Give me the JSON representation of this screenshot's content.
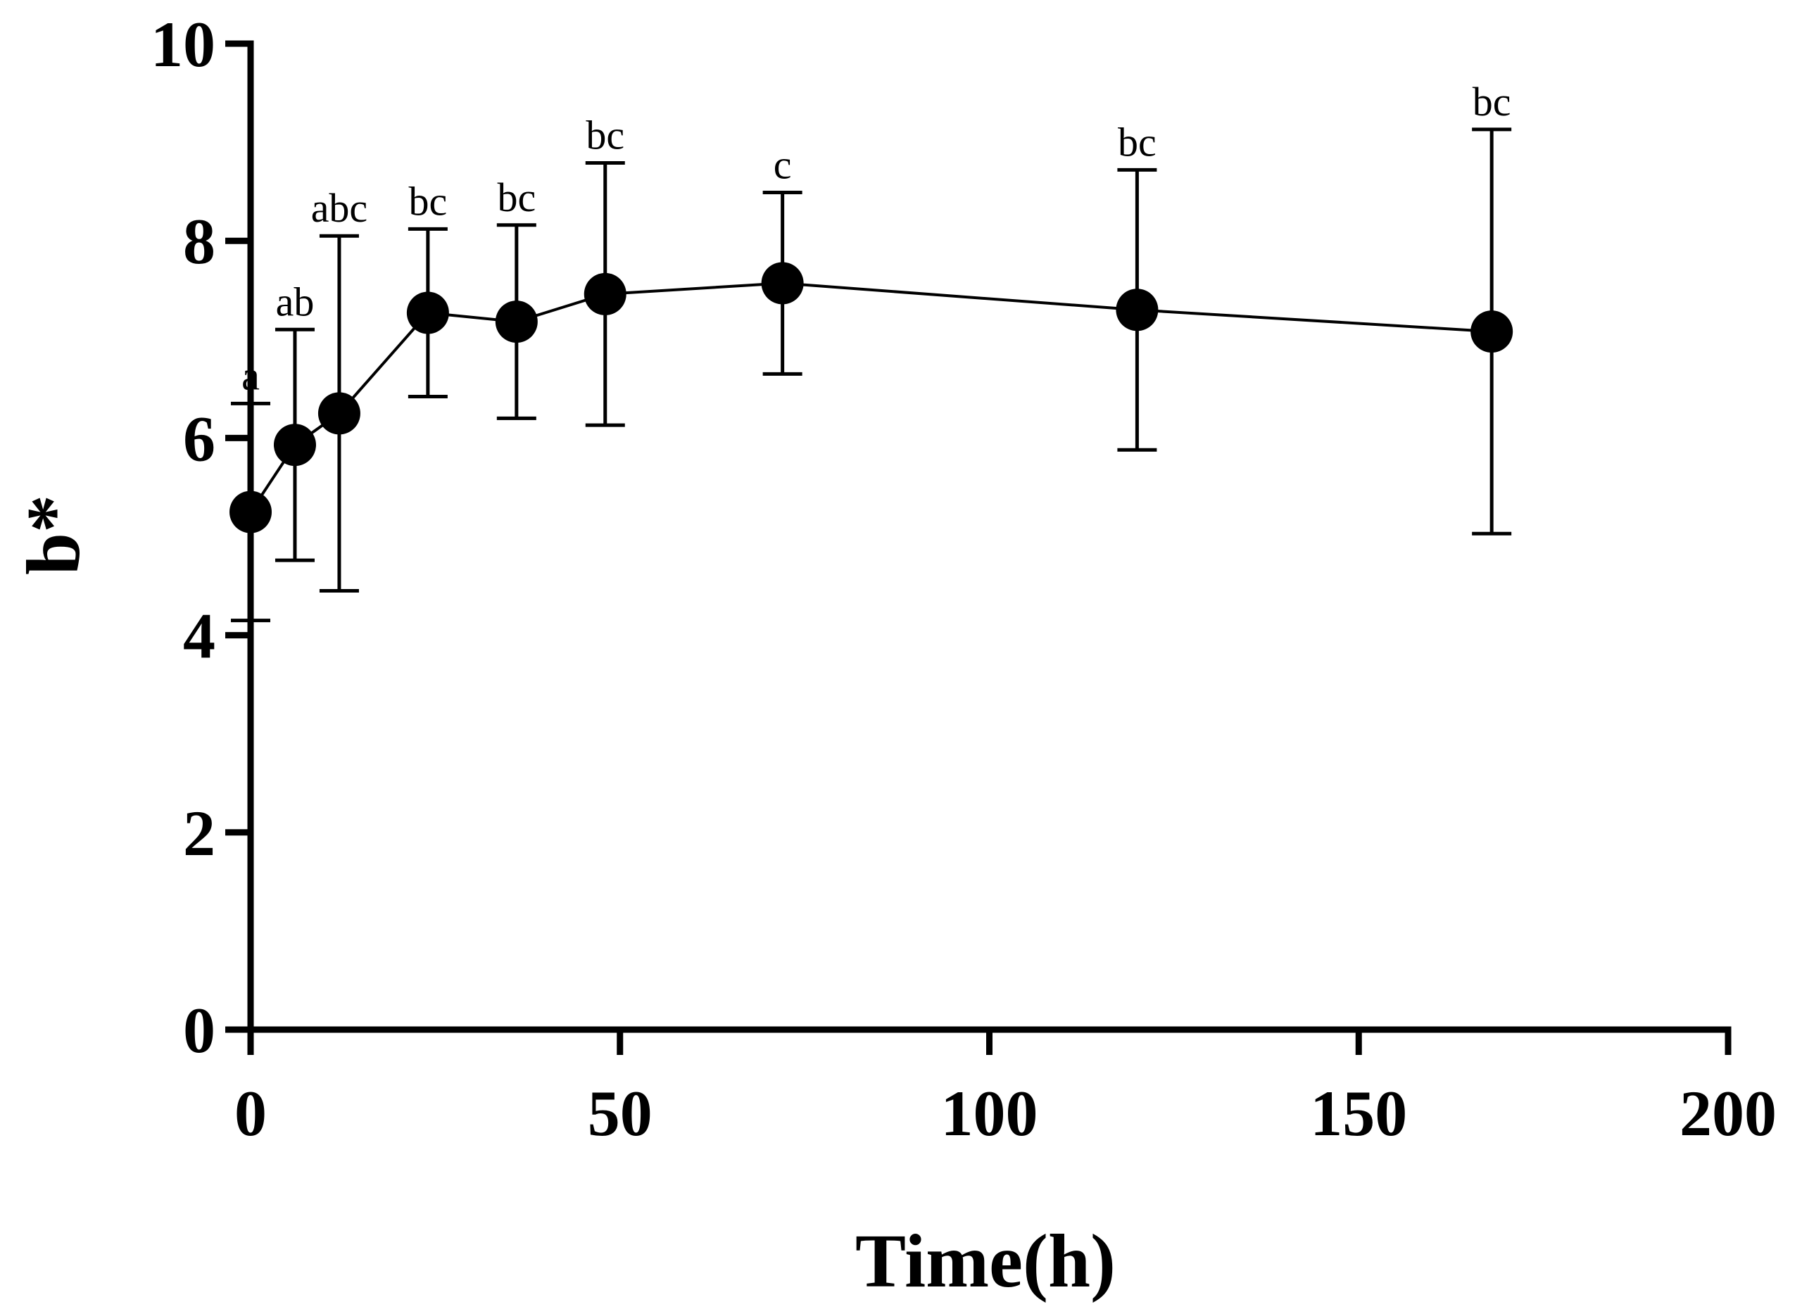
{
  "chart_data": {
    "type": "line",
    "title": "",
    "xlabel": "Time(h)",
    "ylabel": "b*",
    "xlim": [
      0,
      200
    ],
    "ylim": [
      0,
      10
    ],
    "xticks": [
      "0",
      "50",
      "100",
      "150",
      "200"
    ],
    "yticks": [
      "0",
      "2",
      "4",
      "6",
      "8",
      "10"
    ],
    "xtick_values": [
      0,
      50,
      100,
      150,
      200
    ],
    "ytick_values": [
      0,
      2,
      4,
      6,
      8,
      10
    ],
    "grid": false,
    "series": [
      {
        "name": "b*",
        "color": "#000000",
        "points": [
          {
            "x": 0,
            "y": 5.25,
            "err": 1.1,
            "label": "a"
          },
          {
            "x": 6,
            "y": 5.93,
            "err": 1.17,
            "label": "ab"
          },
          {
            "x": 12,
            "y": 6.25,
            "err": 1.8,
            "label": "abc"
          },
          {
            "x": 24,
            "y": 7.27,
            "err": 0.85,
            "label": "bc"
          },
          {
            "x": 36,
            "y": 7.18,
            "err": 0.98,
            "label": "bc"
          },
          {
            "x": 48,
            "y": 7.46,
            "err": 1.33,
            "label": "bc"
          },
          {
            "x": 72,
            "y": 7.57,
            "err": 0.92,
            "label": "c"
          },
          {
            "x": 120,
            "y": 7.3,
            "err": 1.42,
            "label": "bc"
          },
          {
            "x": 168,
            "y": 7.08,
            "err": 2.05,
            "label": "bc"
          }
        ]
      }
    ]
  }
}
